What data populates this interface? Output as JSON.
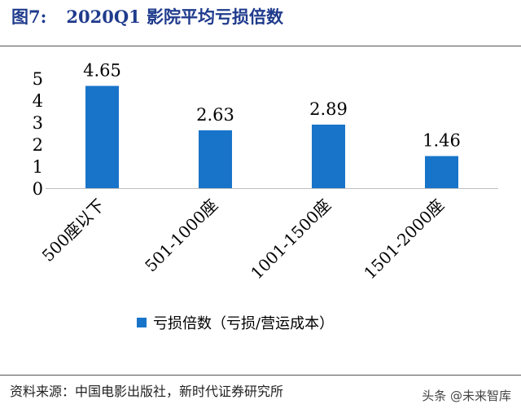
{
  "figure": {
    "number": "图7:",
    "title": "2020Q1 影院平均亏损倍数"
  },
  "chart_data": {
    "type": "bar",
    "categories": [
      "500座以下",
      "501-1000座",
      "1001-1500座",
      "1501-2000座"
    ],
    "series": [
      {
        "name": "亏损倍数（亏损/营运成本）",
        "values": [
          4.65,
          2.63,
          2.89,
          1.46
        ],
        "color": "#1874c9"
      }
    ],
    "ylim": [
      0,
      5
    ],
    "yticks": [
      0,
      1,
      2,
      3,
      4,
      5
    ],
    "data_labels": [
      "4.65",
      "2.63",
      "2.89",
      "1.46"
    ],
    "grid": false,
    "legend_position": "bottom"
  },
  "source": "资料来源：中国电影出版社，新时代证券研究所",
  "watermark": "头条 @未来智库"
}
